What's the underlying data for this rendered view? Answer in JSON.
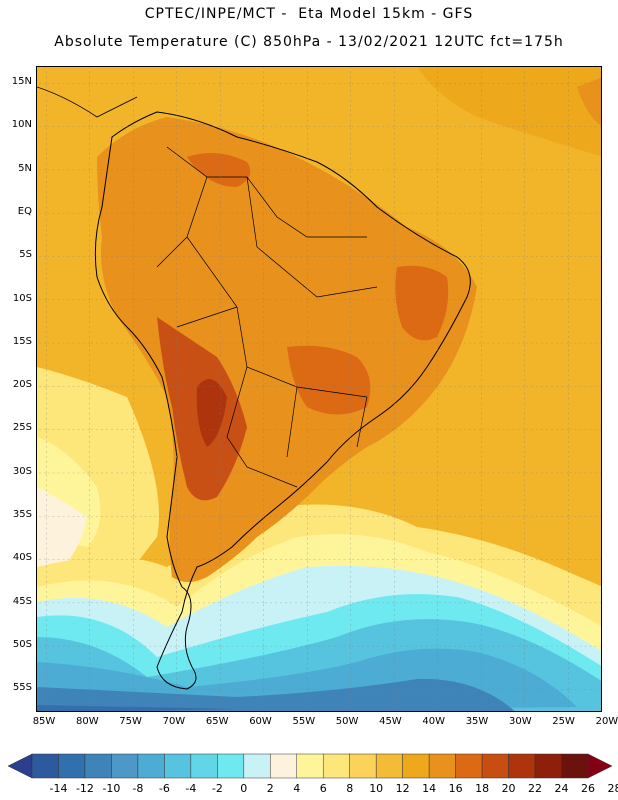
{
  "header": {
    "line1": "CPTEC/INPE/MCT -  Eta Model 15km - GFS",
    "line2": "Absolute Temperature (C) 850hPa - 13/02/2021 12UTC fct=175h"
  },
  "axes": {
    "lat_labels": [
      "15N",
      "10N",
      "5N",
      "EQ",
      "5S",
      "10S",
      "15S",
      "20S",
      "25S",
      "30S",
      "35S",
      "40S",
      "45S",
      "50S",
      "55S"
    ],
    "lon_labels": [
      "85W",
      "80W",
      "75W",
      "70W",
      "65W",
      "60W",
      "55W",
      "50W",
      "45W",
      "40W",
      "35W",
      "30W",
      "25W",
      "20W"
    ]
  },
  "colorbar": {
    "labels": [
      "-14",
      "-12",
      "-10",
      "-8",
      "-6",
      "-4",
      "-2",
      "0",
      "2",
      "4",
      "6",
      "8",
      "10",
      "12",
      "14",
      "16",
      "18",
      "20",
      "22",
      "24",
      "26",
      "28"
    ],
    "colors": [
      "#2b3f8e",
      "#2d5a9f",
      "#3070ad",
      "#3f84b9",
      "#4d98c6",
      "#4cacd3",
      "#56c3df",
      "#62d6e7",
      "#6fe9f0",
      "#c9f2f7",
      "#fdf3dc",
      "#fef59b",
      "#fde67a",
      "#fbd35a",
      "#f4bb36",
      "#eda81b",
      "#e8911c",
      "#dc6a14",
      "#c84d10",
      "#ad340c",
      "#8d1f0b",
      "#6a120b",
      "#860015"
    ]
  },
  "regions": [
    {
      "name": "warm-ocean",
      "color": "#f2b52a"
    },
    {
      "name": "continent-hot",
      "color": "#e47e1d"
    },
    {
      "name": "continent-very-hot",
      "color": "#c85015"
    },
    {
      "name": "cool-pacific",
      "color": "#fde67a"
    },
    {
      "name": "cold-south-atlantic",
      "color": "#56c3df"
    }
  ]
}
